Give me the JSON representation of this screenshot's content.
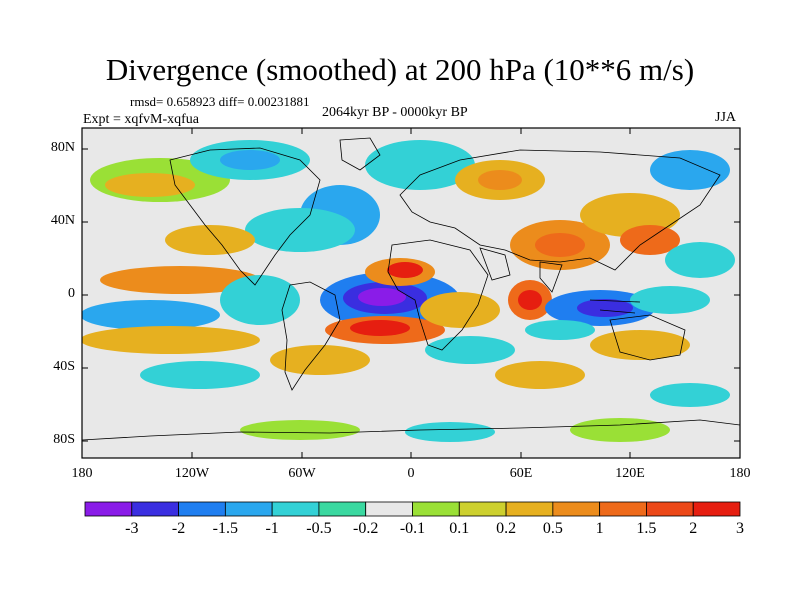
{
  "title": "Divergence (smoothed) at 200 hPa (10**6 m/s)",
  "stats": "rmsd= 0.658923  diff= 0.00231881",
  "experiment": "Expt = xqfvM-xqfua",
  "period": "2064kyr BP - 0000kyr BP",
  "season": "JJA",
  "map": {
    "lat_labels": [
      "80N",
      "40N",
      "0",
      "40S",
      "80S"
    ],
    "lon_labels": [
      "180",
      "120W",
      "60W",
      "0",
      "60E",
      "120E",
      "180"
    ]
  },
  "colorbar": {
    "labels": [
      "-3",
      "-2",
      "-1.5",
      "-1",
      "-0.5",
      "-0.2",
      "-0.1",
      "0.1",
      "0.2",
      "0.5",
      "1",
      "1.5",
      "2",
      "3"
    ],
    "colors": [
      "#8a1ce8",
      "#3a2ee0",
      "#1f7ef0",
      "#2aa7ee",
      "#33d1d6",
      "#3ad8a0",
      "#e8e8e8",
      "#9ae036",
      "#cdd02e",
      "#e6b020",
      "#ec8c1c",
      "#ee6a1a",
      "#ec4818",
      "#e61e10"
    ]
  }
}
